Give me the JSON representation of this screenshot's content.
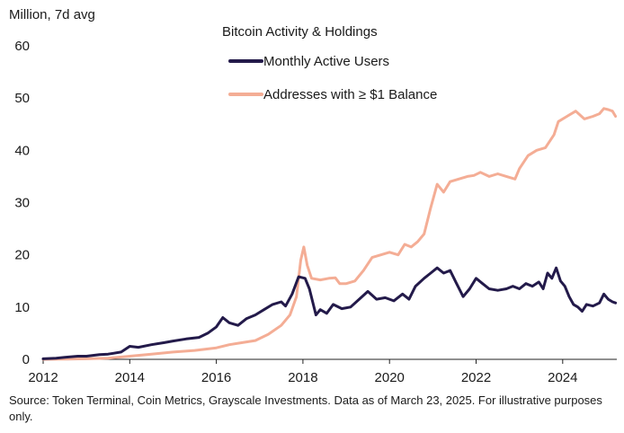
{
  "chart_data": {
    "type": "line",
    "title": "Bitcoin Activity & Holdings",
    "ylabel": "Million, 7d avg",
    "xlabel": "",
    "xlim": [
      2012,
      2025.25
    ],
    "ylim": [
      0,
      60
    ],
    "x_ticks": [
      2012,
      2014,
      2016,
      2018,
      2020,
      2022,
      2024
    ],
    "x_tick_labels": [
      "2012",
      "2014",
      "2016",
      "2018",
      "2020",
      "2022",
      "2024"
    ],
    "y_ticks": [
      0,
      10,
      20,
      30,
      40,
      50,
      60
    ],
    "y_tick_labels": [
      "0",
      "10",
      "20",
      "30",
      "40",
      "50",
      "60"
    ],
    "grid": false,
    "legend_position": "top-center",
    "series": [
      {
        "name": "Monthly Active Users",
        "color": "#231a4a",
        "points": [
          [
            2012.0,
            0.1
          ],
          [
            2012.3,
            0.2
          ],
          [
            2012.5,
            0.4
          ],
          [
            2012.8,
            0.6
          ],
          [
            2013.0,
            0.6
          ],
          [
            2013.3,
            0.9
          ],
          [
            2013.5,
            1.0
          ],
          [
            2013.8,
            1.4
          ],
          [
            2014.0,
            2.5
          ],
          [
            2014.2,
            2.3
          ],
          [
            2014.5,
            2.8
          ],
          [
            2014.8,
            3.2
          ],
          [
            2015.0,
            3.5
          ],
          [
            2015.3,
            3.9
          ],
          [
            2015.6,
            4.2
          ],
          [
            2015.8,
            5.0
          ],
          [
            2016.0,
            6.2
          ],
          [
            2016.15,
            8.0
          ],
          [
            2016.3,
            7.0
          ],
          [
            2016.5,
            6.5
          ],
          [
            2016.7,
            7.8
          ],
          [
            2016.9,
            8.5
          ],
          [
            2017.1,
            9.5
          ],
          [
            2017.3,
            10.5
          ],
          [
            2017.5,
            11.0
          ],
          [
            2017.6,
            10.2
          ],
          [
            2017.75,
            12.5
          ],
          [
            2017.9,
            15.8
          ],
          [
            2018.05,
            15.5
          ],
          [
            2018.15,
            13.5
          ],
          [
            2018.3,
            8.5
          ],
          [
            2018.4,
            9.5
          ],
          [
            2018.55,
            8.8
          ],
          [
            2018.7,
            10.5
          ],
          [
            2018.9,
            9.7
          ],
          [
            2019.1,
            10.0
          ],
          [
            2019.3,
            11.5
          ],
          [
            2019.5,
            13.0
          ],
          [
            2019.7,
            11.5
          ],
          [
            2019.9,
            11.8
          ],
          [
            2020.1,
            11.2
          ],
          [
            2020.3,
            12.5
          ],
          [
            2020.45,
            11.5
          ],
          [
            2020.6,
            14.0
          ],
          [
            2020.8,
            15.5
          ],
          [
            2020.95,
            16.5
          ],
          [
            2021.1,
            17.5
          ],
          [
            2021.25,
            16.5
          ],
          [
            2021.4,
            17.0
          ],
          [
            2021.55,
            14.5
          ],
          [
            2021.7,
            12.0
          ],
          [
            2021.85,
            13.5
          ],
          [
            2022.0,
            15.5
          ],
          [
            2022.15,
            14.5
          ],
          [
            2022.3,
            13.5
          ],
          [
            2022.5,
            13.2
          ],
          [
            2022.7,
            13.5
          ],
          [
            2022.85,
            14.0
          ],
          [
            2023.0,
            13.5
          ],
          [
            2023.15,
            14.5
          ],
          [
            2023.3,
            14.0
          ],
          [
            2023.45,
            14.8
          ],
          [
            2023.55,
            13.5
          ],
          [
            2023.65,
            16.5
          ],
          [
            2023.75,
            15.5
          ],
          [
            2023.85,
            17.5
          ],
          [
            2023.95,
            15.0
          ],
          [
            2024.05,
            14.0
          ],
          [
            2024.15,
            12.0
          ],
          [
            2024.25,
            10.5
          ],
          [
            2024.35,
            10.0
          ],
          [
            2024.45,
            9.2
          ],
          [
            2024.55,
            10.5
          ],
          [
            2024.7,
            10.2
          ],
          [
            2024.85,
            10.8
          ],
          [
            2024.95,
            12.5
          ],
          [
            2025.05,
            11.5
          ],
          [
            2025.15,
            11.0
          ],
          [
            2025.22,
            10.8
          ]
        ]
      },
      {
        "name": "Addresses with ≥ $1 Balance",
        "color": "#f4ad95",
        "points": [
          [
            2012.0,
            0.0
          ],
          [
            2012.5,
            0.05
          ],
          [
            2013.0,
            0.1
          ],
          [
            2013.5,
            0.2
          ],
          [
            2014.0,
            0.6
          ],
          [
            2014.5,
            1.0
          ],
          [
            2015.0,
            1.4
          ],
          [
            2015.5,
            1.7
          ],
          [
            2016.0,
            2.2
          ],
          [
            2016.3,
            2.8
          ],
          [
            2016.6,
            3.2
          ],
          [
            2016.9,
            3.6
          ],
          [
            2017.2,
            4.8
          ],
          [
            2017.5,
            6.5
          ],
          [
            2017.7,
            8.5
          ],
          [
            2017.85,
            12.0
          ],
          [
            2017.95,
            19.0
          ],
          [
            2018.02,
            21.5
          ],
          [
            2018.1,
            18.0
          ],
          [
            2018.2,
            15.5
          ],
          [
            2018.4,
            15.2
          ],
          [
            2018.6,
            15.5
          ],
          [
            2018.75,
            15.6
          ],
          [
            2018.85,
            14.5
          ],
          [
            2019.0,
            14.5
          ],
          [
            2019.2,
            15.0
          ],
          [
            2019.4,
            17.0
          ],
          [
            2019.6,
            19.5
          ],
          [
            2019.8,
            20.0
          ],
          [
            2020.0,
            20.5
          ],
          [
            2020.2,
            20.0
          ],
          [
            2020.35,
            22.0
          ],
          [
            2020.5,
            21.5
          ],
          [
            2020.65,
            22.5
          ],
          [
            2020.8,
            24.0
          ],
          [
            2020.95,
            29.0
          ],
          [
            2021.1,
            33.5
          ],
          [
            2021.25,
            32.0
          ],
          [
            2021.4,
            34.0
          ],
          [
            2021.6,
            34.5
          ],
          [
            2021.8,
            35.0
          ],
          [
            2021.95,
            35.2
          ],
          [
            2022.1,
            35.8
          ],
          [
            2022.3,
            35.0
          ],
          [
            2022.5,
            35.5
          ],
          [
            2022.7,
            35.0
          ],
          [
            2022.9,
            34.5
          ],
          [
            2023.0,
            36.5
          ],
          [
            2023.2,
            39.0
          ],
          [
            2023.4,
            40.0
          ],
          [
            2023.6,
            40.5
          ],
          [
            2023.8,
            43.0
          ],
          [
            2023.9,
            45.5
          ],
          [
            2024.1,
            46.5
          ],
          [
            2024.3,
            47.5
          ],
          [
            2024.5,
            46.0
          ],
          [
            2024.7,
            46.5
          ],
          [
            2024.85,
            47.0
          ],
          [
            2024.95,
            48.0
          ],
          [
            2025.05,
            47.8
          ],
          [
            2025.15,
            47.5
          ],
          [
            2025.22,
            46.5
          ]
        ]
      }
    ]
  },
  "footer": {
    "source_text": "Source: Token Terminal, Coin Metrics, Grayscale Investments. Data as of March 23, 2025. For illustrative purposes only."
  }
}
